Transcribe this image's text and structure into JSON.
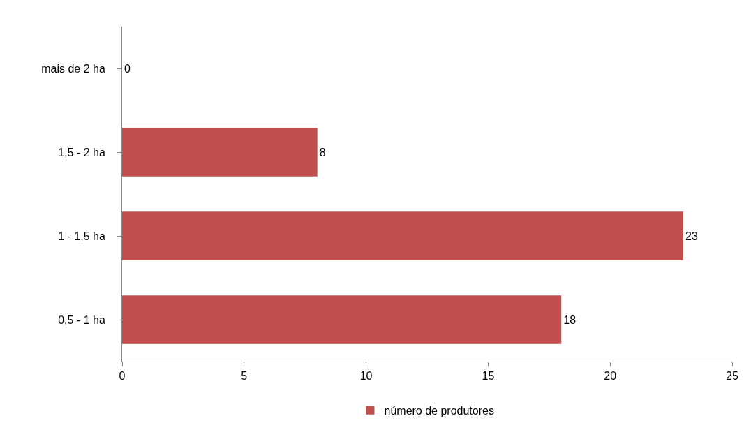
{
  "chart_data": {
    "type": "bar",
    "orientation": "horizontal",
    "categories": [
      "mais de 2 ha",
      "1,5 - 2 ha",
      "1 - 1,5 ha",
      "0,5 - 1 ha"
    ],
    "series": [
      {
        "name": "número de produtores",
        "color": "#c0504d",
        "values": [
          0,
          8,
          23,
          18
        ]
      }
    ],
    "xlim": [
      0,
      25
    ],
    "xticks": [
      0,
      5,
      10,
      15,
      20,
      25
    ],
    "legend": "bottom",
    "data_labels": true
  }
}
